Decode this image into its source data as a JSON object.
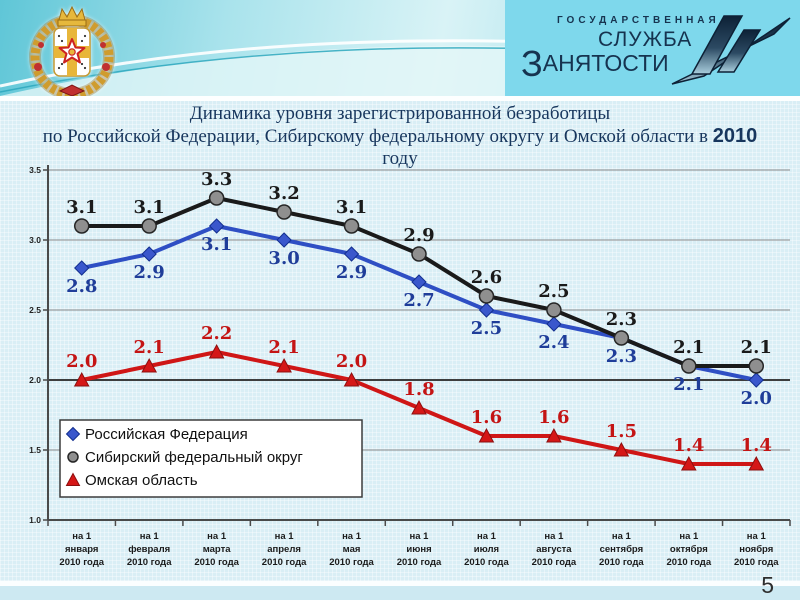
{
  "slide": {
    "page_number": "5"
  },
  "header": {
    "logo": {
      "line1": "ГОСУДАРСТВЕННАЯ",
      "line2": "СЛУЖБА",
      "line3_initial": "З",
      "line3_rest": "АНЯТОСТИ"
    }
  },
  "title": {
    "line1": "Динамика уровня зарегистрированной безработицы",
    "line2_prefix": "по Российской Федерации, Сибирскому федеральному округу и Омской области в ",
    "line2_bold": "2010",
    "line3": "году"
  },
  "chart_data": {
    "type": "line",
    "title": "Динамика уровня зарегистрированной безработицы по Российской Федерации, Сибирскому федеральному округу и Омской области в 2010 году",
    "categories": [
      [
        "на 1",
        "января",
        "2010 года"
      ],
      [
        "на 1",
        "февраля",
        "2010 года"
      ],
      [
        "на 1",
        "марта",
        "2010 года"
      ],
      [
        "на 1",
        "апреля",
        "2010 года"
      ],
      [
        "на 1",
        "мая",
        "2010 года"
      ],
      [
        "на 1",
        "июня",
        "2010 года"
      ],
      [
        "на 1",
        "июля",
        "2010 года"
      ],
      [
        "на 1",
        "августа",
        "2010 года"
      ],
      [
        "на 1",
        "сентября",
        "2010 года"
      ],
      [
        "на 1",
        "октября",
        "2010 года"
      ],
      [
        "на 1",
        "ноября",
        "2010 года"
      ]
    ],
    "series": [
      {
        "name": "Российская Федерация",
        "values": [
          2.8,
          2.9,
          3.1,
          3.0,
          2.9,
          2.7,
          2.5,
          2.4,
          2.3,
          2.1,
          2.0
        ],
        "color": "#2f4fc4",
        "marker": "diamond",
        "marker_fill": "#3a57cc",
        "marker_stroke": "#132f8f",
        "label_color": "#1f3d99",
        "label_position": "below"
      },
      {
        "name": "Сибирский федеральный округ",
        "values": [
          3.1,
          3.1,
          3.3,
          3.2,
          3.1,
          2.9,
          2.6,
          2.5,
          2.3,
          2.1,
          2.1
        ],
        "color": "#1a1a1a",
        "marker": "circle",
        "marker_fill": "#8f8f8f",
        "marker_stroke": "#262626",
        "label_color": "#1a1a1a",
        "label_position": "above"
      },
      {
        "name": "Омская область",
        "values": [
          2.0,
          2.1,
          2.2,
          2.1,
          2.0,
          1.8,
          1.6,
          1.6,
          1.5,
          1.4,
          1.4
        ],
        "color": "#cf1616",
        "marker": "triangle",
        "marker_fill": "#d51717",
        "marker_stroke": "#8c0f0f",
        "label_color": "#c41414",
        "label_position": "above"
      }
    ],
    "ylim": [
      1.0,
      3.5
    ],
    "ytick_step": 0.5,
    "yticks": [
      "1.0",
      "1.5",
      "2.0",
      "2.5",
      "3.0",
      "3.5"
    ],
    "grid": true,
    "highlight_gridline": 2.0,
    "legend": {
      "position": "inside-bottom-left",
      "entries": [
        "Российская Федерация",
        "Сибирский федеральный округ",
        "Омская область"
      ]
    },
    "colors": {
      "grid": "#8a8a8a",
      "grid_highlight": "#3d3d3d",
      "axis": "#4a4a4a",
      "title_navy": "#17365d",
      "band_teal": "#57c4d6",
      "panel_blue": "#7ed8ec"
    }
  }
}
